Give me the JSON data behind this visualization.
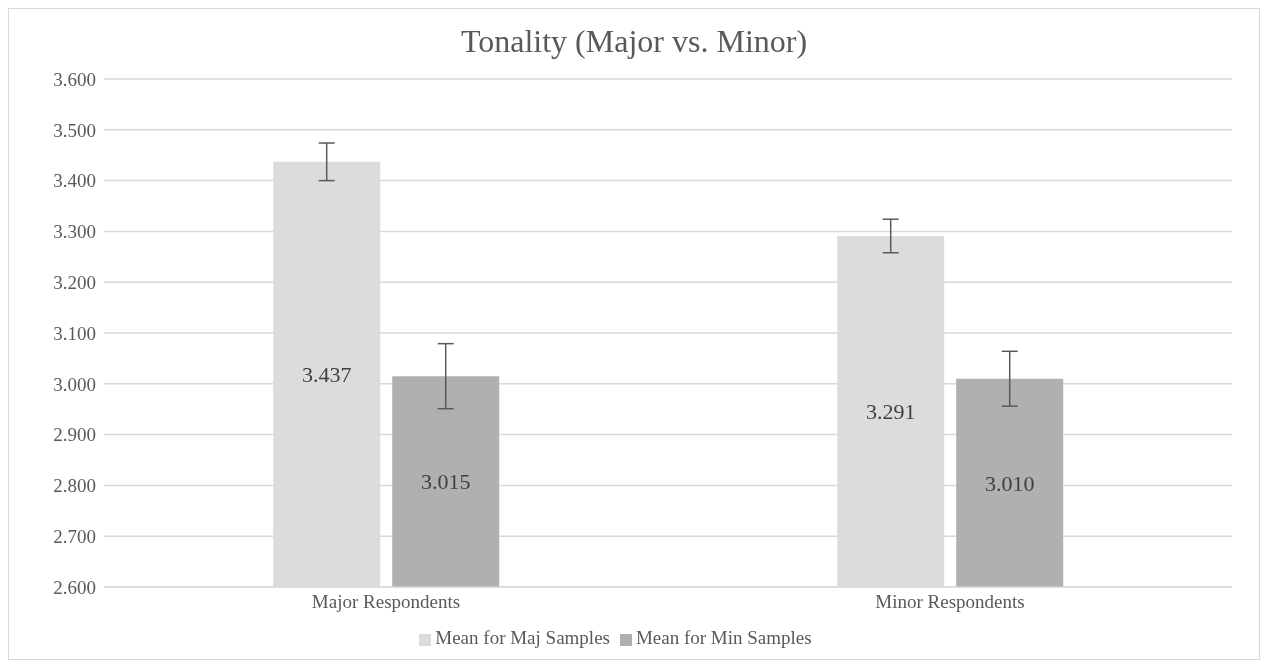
{
  "chart_data": {
    "type": "bar",
    "title": "Tonality (Major vs. Minor)",
    "categories": [
      "Major Respondents",
      "Minor Respondents"
    ],
    "series": [
      {
        "name": "Mean for Maj Samples",
        "color": "#dcdcdc",
        "values": [
          3.437,
          3.291
        ],
        "errors": [
          0.037,
          0.033
        ],
        "value_labels": [
          "3.437",
          "3.291"
        ]
      },
      {
        "name": "Mean for Min Samples",
        "color": "#b0b0b0",
        "values": [
          3.015,
          3.01
        ],
        "errors": [
          0.064,
          0.054
        ],
        "value_labels": [
          "3.015",
          "3.010"
        ]
      }
    ],
    "ylim": [
      2.6,
      3.6
    ],
    "yticks": [
      {
        "value": 2.6,
        "label": "2.600"
      },
      {
        "value": 2.7,
        "label": "2.700"
      },
      {
        "value": 2.8,
        "label": "2.800"
      },
      {
        "value": 2.9,
        "label": "2.900"
      },
      {
        "value": 3.0,
        "label": "3.000"
      },
      {
        "value": 3.1,
        "label": "3.100"
      },
      {
        "value": 3.2,
        "label": "3.200"
      },
      {
        "value": 3.3,
        "label": "3.300"
      },
      {
        "value": 3.4,
        "label": "3.400"
      },
      {
        "value": 3.5,
        "label": "3.500"
      },
      {
        "value": 3.6,
        "label": "3.600"
      }
    ],
    "grid": "y",
    "legend": "bottom"
  }
}
